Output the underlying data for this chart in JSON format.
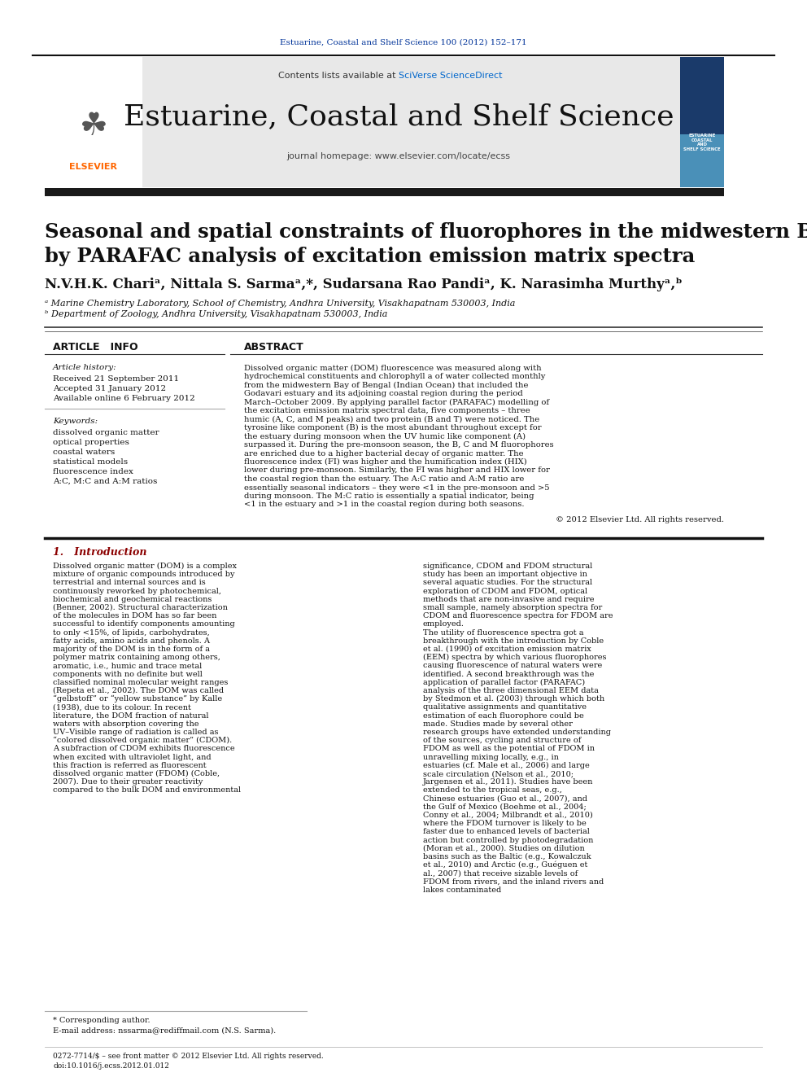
{
  "page_bg": "#ffffff",
  "header_journal_text": "Estuarine, Coastal and Shelf Science 100 (2012) 152–171",
  "header_journal_color": "#003399",
  "contents_text": "Contents lists available at ",
  "sciverse_text": "SciVerse ScienceDirect",
  "sciverse_color": "#0066cc",
  "journal_name": "Estuarine, Coastal and Shelf Science",
  "journal_name_fontsize": 26,
  "homepage_text": "journal homepage: www.elsevier.com/locate/ecss",
  "header_bg": "#e8e8e8",
  "black_bar_color": "#1a1a1a",
  "title_line1": "Seasonal and spatial constraints of fluorophores in the midwestern Bay of Bengal",
  "title_line2": "by PARAFAC analysis of excitation emission matrix spectra",
  "title_fontsize": 17.5,
  "authors": "N.V.H.K. Chariᵃ, Nittala S. Sarmaᵃ,*, Sudarsana Rao Pandiᵃ, K. Narasimha Murthyᵃ,ᵇ",
  "authors_fontsize": 12,
  "affil_a": "ᵃ Marine Chemistry Laboratory, School of Chemistry, Andhra University, Visakhapatnam 530003, India",
  "affil_b": "ᵇ Department of Zoology, Andhra University, Visakhapatnam 530003, India",
  "affil_fontsize": 8,
  "article_info_header": "ARTICLE   INFO",
  "abstract_header": "ABSTRACT",
  "section_header_fontsize": 9,
  "article_history_label": "Article history:",
  "received_text": "Received 21 September 2011",
  "accepted_text": "Accepted 31 January 2012",
  "available_text": "Available online 6 February 2012",
  "keywords_label": "Keywords:",
  "keywords": [
    "dissolved organic matter",
    "optical properties",
    "coastal waters",
    "statistical models",
    "fluorescence index",
    "A:C, M:C and A:M ratios"
  ],
  "abstract_text": "Dissolved organic matter (DOM) fluorescence was measured along with hydrochemical constituents and chlorophyll a of water collected monthly from the midwestern Bay of Bengal (Indian Ocean) that included the Godavari estuary and its adjoining coastal region during the period March–October 2009. By applying parallel factor (PARAFAC) modelling of the excitation emission matrix spectral data, five components – three humic (A, C, and M peaks) and two protein (B and T) were noticed. The tyrosine like component (B) is the most abundant throughout except for the estuary during monsoon when the UV humic like component (A) surpassed it. During the pre-monsoon season, the B, C and M fluorophores are enriched due to a higher bacterial decay of organic matter. The fluorescence index (FI) was higher and the humification index (HIX) lower during pre-monsoon. Similarly, the FI was higher and HIX lower for the coastal region than the estuary. The A:C ratio and A:M ratio are essentially seasonal indicators – they were <1 in the pre-monsoon and >5 during monsoon. The M:C ratio is essentially a spatial indicator, being <1 in the estuary and >1 in the coastal region during both seasons.",
  "copyright_text": "© 2012 Elsevier Ltd. All rights reserved.",
  "intro_header": "1.   Introduction",
  "intro_header_color": "#8B0000",
  "intro_text_col1": "Dissolved organic matter (DOM) is a complex mixture of organic compounds introduced by terrestrial and internal sources and is continuously reworked by photochemical, biochemical and geochemical reactions (Benner, 2002). Structural characterization of the molecules in DOM has so far been successful to identify components amounting to only <15%, of lipids, carbohydrates, fatty acids, amino acids and phenols. A majority of the DOM is in the form of a polymer matrix containing among others, aromatic, i.e., humic and trace metal components with no definite but well classified nominal molecular weight ranges (Repeta et al., 2002). The DOM was called “gelbstoff” or “yellow substance” by Kalle (1938), due to its colour. In recent literature, the DOM fraction of natural waters with absorption covering the UV–Visible range of radiation is called as “colored dissolved organic matter” (CDOM). A subfraction of CDOM exhibits fluorescence when excited with ultraviolet light, and this fraction is referred as fluorescent dissolved organic matter (FDOM) (Coble, 2007). Due to their greater reactivity compared to the bulk DOM and environmental",
  "intro_text_col2": "significance, CDOM and FDOM structural study has been an important objective in several aquatic studies. For the structural exploration of CDOM and FDOM, optical methods that are non-invasive and require small sample, namely absorption spectra for CDOM and fluorescence spectra for FDOM are employed.\n    The utility of fluorescence spectra got a breakthrough with the introduction by Coble et al. (1990) of excitation emission matrix (EEM) spectra by which various fluorophores causing fluorescence of natural waters were identified. A second breakthrough was the application of parallel factor (PARAFAC) analysis of the three dimensional EEM data by Stedmon et al. (2003) through which both qualitative assignments and quantitative estimation of each fluorophore could be made. Studies made by several other research groups have extended understanding of the sources, cycling and structure of FDOM as well as the potential of FDOM in unravelling mixing locally, e.g., in estuaries (cf. Male et al., 2006) and large scale circulation (Nelson et al., 2010; Jargensen et al., 2011). Studies have been extended to the tropical seas, e.g., Chinese estuaries (Guo et al., 2007), and the Gulf of Mexico (Boehme et al., 2004; Conny et al., 2004; Milbrandt et al., 2010) where the FDOM turnover is likely to be faster due to enhanced levels of bacterial action but controlled by photodegradation (Moran et al., 2000). Studies on dilution basins such as the Baltic (e.g., Kowalczuk et al., 2010) and Arctic (e.g., Guéguen et al., 2007) that receive sizable levels of FDOM from rivers, and the inland rivers and lakes contaminated",
  "footnote_corresponding": "* Corresponding author.",
  "footnote_email": "E-mail address: nssarma@rediffmail.com (N.S. Sarma).",
  "footer_text": "0272-7714/$ – see front matter © 2012 Elsevier Ltd. All rights reserved.\ndoi:10.1016/j.ecss.2012.01.012"
}
